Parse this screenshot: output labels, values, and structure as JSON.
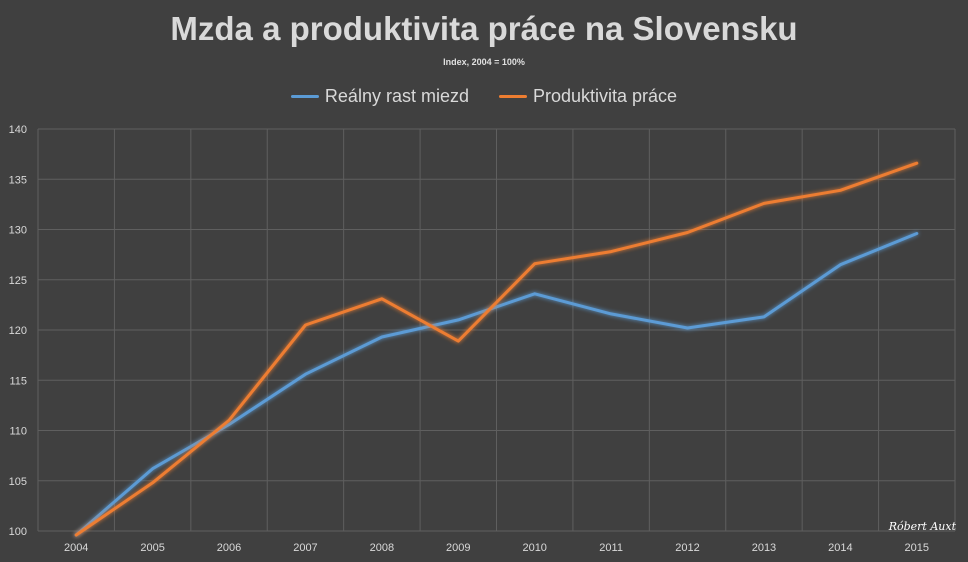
{
  "chart_data": {
    "type": "line",
    "title": "Mzda a produktivita práce na Slovensku",
    "subtitle": "Index, 2004 = 100%",
    "xlabel": "",
    "ylabel": "",
    "categories": [
      "2004",
      "2005",
      "2006",
      "2007",
      "2008",
      "2009",
      "2010",
      "2011",
      "2012",
      "2013",
      "2014",
      "2015"
    ],
    "ylim": [
      100,
      140
    ],
    "yticks": [
      100,
      105,
      110,
      115,
      120,
      125,
      130,
      135,
      140
    ],
    "grid": true,
    "legend_position": "top",
    "series": [
      {
        "name": "Reálny rast miezd",
        "color": "#5b9bd5",
        "values": [
          99.6,
          106.2,
          110.6,
          115.6,
          119.3,
          121.0,
          123.6,
          121.6,
          120.2,
          121.3,
          126.5,
          129.6
        ]
      },
      {
        "name": "Produktivita práce",
        "color": "#ed7d31",
        "values": [
          99.6,
          104.8,
          111.0,
          120.5,
          123.1,
          118.9,
          126.6,
          127.8,
          129.7,
          132.6,
          133.9,
          136.6
        ]
      }
    ],
    "signature": "Róbert Auxt"
  }
}
